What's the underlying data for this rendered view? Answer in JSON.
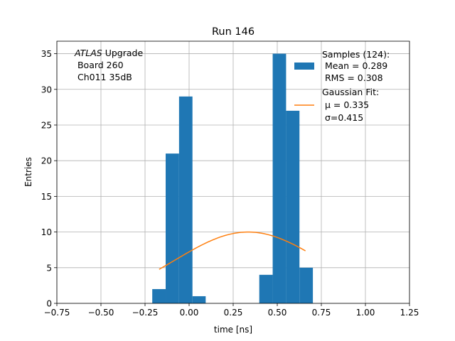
{
  "chart_data": {
    "type": "bar",
    "title": "Run 146",
    "xlabel": "time [ns]",
    "ylabel": "Entries",
    "xlim": [
      -0.75,
      1.25
    ],
    "ylim": [
      0,
      36.75
    ],
    "grid": true,
    "xticks": [
      "−0.75",
      "−0.50",
      "−0.25",
      "0.00",
      "0.25",
      "0.50",
      "0.75",
      "1.00",
      "1.25"
    ],
    "xtick_values": [
      -0.75,
      -0.5,
      -0.25,
      0.0,
      0.25,
      0.5,
      0.75,
      1.0,
      1.25
    ],
    "yticks": [
      "0",
      "5",
      "10",
      "15",
      "20",
      "25",
      "30",
      "35"
    ],
    "ytick_values": [
      0,
      5,
      10,
      15,
      20,
      25,
      30,
      35
    ],
    "histogram": {
      "name": "Samples (124):",
      "color": "#1f77b4",
      "bins": [
        {
          "x0": -0.209,
          "x1": -0.133,
          "count": 2
        },
        {
          "x0": -0.133,
          "x1": -0.057,
          "count": 21
        },
        {
          "x0": -0.057,
          "x1": 0.019,
          "count": 29
        },
        {
          "x0": 0.019,
          "x1": 0.094,
          "count": 1
        },
        {
          "x0": 0.398,
          "x1": 0.474,
          "count": 4
        },
        {
          "x0": 0.474,
          "x1": 0.55,
          "count": 35
        },
        {
          "x0": 0.55,
          "x1": 0.626,
          "count": 27
        },
        {
          "x0": 0.626,
          "x1": 0.702,
          "count": 5
        }
      ]
    },
    "fit": {
      "name": "Gaussian Fit:",
      "color": "#ff7f0e",
      "mu": 0.335,
      "sigma": 0.415,
      "amplitude": 10.0,
      "x_range": [
        -0.17,
        0.66
      ]
    },
    "annotation": {
      "line1_italic": "ATLAS",
      "line1_rest": " Upgrade",
      "line2": " Board 260",
      "line3": " Ch011 35dB"
    },
    "legend": {
      "placement": "top-right",
      "samples_title": "Samples (124):",
      "samples_mean": " Mean = 0.289",
      "samples_rms": " RMS = 0.308",
      "fit_title": "Gaussian Fit:",
      "fit_mu": " μ = 0.335",
      "fit_sigma": " σ=0.415"
    }
  }
}
